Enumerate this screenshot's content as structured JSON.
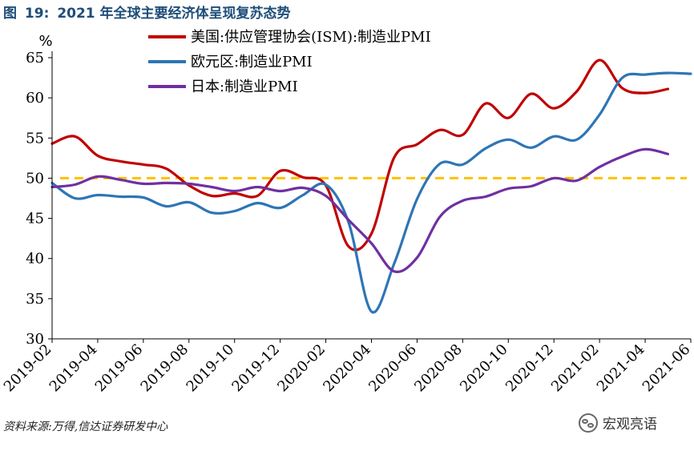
{
  "figure": {
    "title_prefix": "图",
    "title_number": "19:",
    "title_text": "2021 年全球主要经济体呈现复苏态势",
    "source": "资料来源:万得,信达证券研发中心",
    "watermark": "宏观亮语"
  },
  "chart_data": {
    "type": "line",
    "ylabel": "%",
    "ylim": [
      30,
      65
    ],
    "yticks": [
      30,
      35,
      40,
      45,
      50,
      55,
      60,
      65
    ],
    "x_range": [
      0,
      28
    ],
    "xtick_labels": [
      "2019-02",
      "2019-04",
      "2019-06",
      "2019-08",
      "2019-10",
      "2019-12",
      "2020-02",
      "2020-04",
      "2020-06",
      "2020-08",
      "2020-10",
      "2020-12",
      "2021-02",
      "2021-04",
      "2021-06"
    ],
    "xtick_positions": [
      0,
      2,
      4,
      6,
      8,
      10,
      12,
      14,
      16,
      18,
      20,
      22,
      24,
      26,
      28
    ],
    "grid": false,
    "legend_position": "top-left",
    "reference_line": {
      "value": 50,
      "color": "#ffc000",
      "style": "dashed"
    },
    "series": [
      {
        "name": "美国:供应管理协会(ISM):制造业PMI",
        "color": "#c00000",
        "x": [
          0,
          1,
          2,
          3,
          4,
          5,
          6,
          7,
          8,
          9,
          10,
          11,
          12,
          13,
          14,
          15,
          16,
          17,
          18,
          19,
          20,
          21,
          22,
          23,
          24,
          25,
          26,
          27
        ],
        "y": [
          54.3,
          55.2,
          52.8,
          52.1,
          51.7,
          51.2,
          49.1,
          47.8,
          48.1,
          47.8,
          50.9,
          50.1,
          49.1,
          41.5,
          43.1,
          52.6,
          54.2,
          56.0,
          55.4,
          59.3,
          57.5,
          60.5,
          58.7,
          60.8,
          64.7,
          61.2,
          60.6,
          61.1
        ]
      },
      {
        "name": "欧元区:制造业PMI",
        "color": "#2e75b6",
        "x": [
          0,
          1,
          2,
          3,
          4,
          5,
          6,
          7,
          8,
          9,
          10,
          11,
          12,
          13,
          14,
          15,
          16,
          17,
          18,
          19,
          20,
          21,
          22,
          23,
          24,
          25,
          26,
          27,
          28
        ],
        "y": [
          49.4,
          47.5,
          47.9,
          47.7,
          47.6,
          46.5,
          47.0,
          45.7,
          45.9,
          46.9,
          46.3,
          47.9,
          49.2,
          44.5,
          33.4,
          39.4,
          47.4,
          51.8,
          51.7,
          53.7,
          54.8,
          53.8,
          55.2,
          54.8,
          57.9,
          62.5,
          62.9,
          63.1,
          63.0
        ]
      },
      {
        "name": "日本:制造业PMI",
        "color": "#7030a0",
        "x": [
          0,
          1,
          2,
          3,
          4,
          5,
          6,
          7,
          8,
          9,
          10,
          11,
          12,
          13,
          14,
          15,
          16,
          17,
          18,
          19,
          20,
          21,
          22,
          23,
          24,
          25,
          26,
          27
        ],
        "y": [
          48.9,
          49.2,
          50.2,
          49.8,
          49.3,
          49.4,
          49.3,
          48.9,
          48.4,
          48.9,
          48.4,
          48.8,
          47.8,
          44.8,
          41.9,
          38.4,
          40.1,
          45.2,
          47.2,
          47.7,
          48.7,
          49.0,
          50.0,
          49.7,
          51.4,
          52.7,
          53.6,
          53.0
        ]
      }
    ]
  }
}
